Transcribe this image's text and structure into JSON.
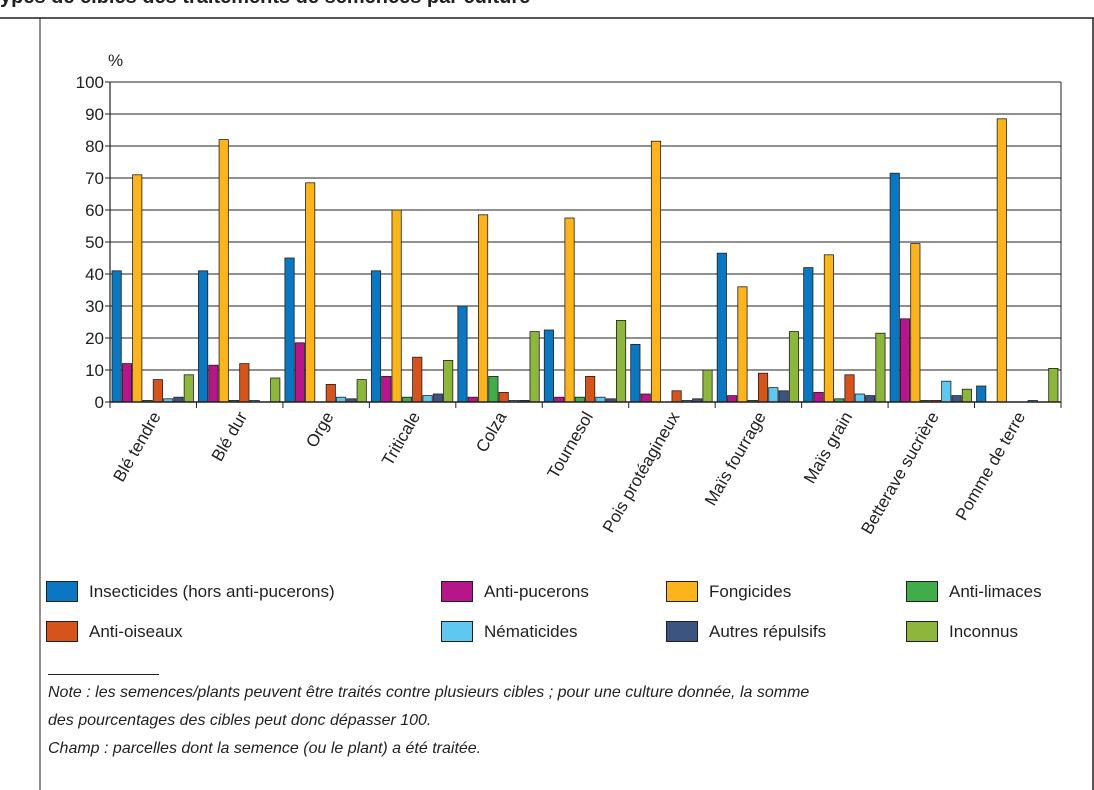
{
  "title": "ypes de cibles des traitements de semences par culture",
  "colors": {
    "insecticides": "#0a77c0",
    "anti_pucerons": "#b5178b",
    "fongicides": "#fbb41c",
    "anti_limaces": "#3fad49",
    "anti_oiseaux": "#d4541c",
    "nematicides": "#5fc8f0",
    "autres_repulsifs": "#3b5580",
    "inconnus": "#8cb63c"
  },
  "legend": [
    {
      "label": "Insecticides (hors anti-pucerons)",
      "color": "#0a77c0"
    },
    {
      "label": "Anti-pucerons",
      "color": "#b5178b"
    },
    {
      "label": "Fongicides",
      "color": "#fbb41c"
    },
    {
      "label": "Anti-limaces",
      "color": "#3fad49"
    },
    {
      "label": "Anti-oiseaux",
      "color": "#d4541c"
    },
    {
      "label": "Nématicides",
      "color": "#5fc8f0"
    },
    {
      "label": "Autres répulsifs",
      "color": "#3b5580"
    },
    {
      "label": "Inconnus",
      "color": "#8cb63c"
    }
  ],
  "notes": {
    "line1": "Note : les semences/plants peuvent être traités contre plusieurs cibles ; pour une culture donnée, la somme",
    "line2": "des pourcentages des cibles peut donc dépasser 100.",
    "line3": "Champ : parcelles dont la semence (ou le plant) a été traitée."
  },
  "chart_data": {
    "type": "bar",
    "ylabel": "%",
    "ylim": [
      0,
      100
    ],
    "yticks": [
      0,
      10,
      20,
      30,
      40,
      50,
      60,
      70,
      80,
      90,
      100
    ],
    "grid": true,
    "legend_position": "bottom",
    "categories": [
      "Blé tendre",
      "Blé dur",
      "Orge",
      "Triticale",
      "Colza",
      "Tournesol",
      "Pois protéagineux",
      "Maïs fourrage",
      "Maïs grain",
      "Betterave sucrière",
      "Pomme de terre"
    ],
    "series": [
      {
        "name": "Insecticides (hors anti-pucerons)",
        "color": "#0a77c0",
        "values": [
          41,
          41,
          45,
          41,
          30,
          22.5,
          18,
          46.5,
          42,
          71.5,
          5
        ]
      },
      {
        "name": "Anti-pucerons",
        "color": "#b5178b",
        "values": [
          12,
          11.5,
          18.5,
          8,
          1.5,
          1.5,
          2.5,
          2,
          3,
          26,
          0
        ]
      },
      {
        "name": "Fongicides",
        "color": "#fbb41c",
        "values": [
          71,
          82,
          68.5,
          60,
          58.5,
          57.5,
          81.5,
          36,
          46,
          49.5,
          88.5
        ]
      },
      {
        "name": "Anti-limaces",
        "color": "#3fad49",
        "values": [
          0.5,
          0.5,
          0,
          1.5,
          8,
          1.5,
          0,
          0.5,
          1,
          0.5,
          0
        ]
      },
      {
        "name": "Anti-oiseaux",
        "color": "#d4541c",
        "values": [
          7,
          12,
          5.5,
          14,
          3,
          8,
          3.5,
          9,
          8.5,
          0.5,
          0
        ]
      },
      {
        "name": "Nématicides",
        "color": "#5fc8f0",
        "values": [
          1,
          0.5,
          1.5,
          2,
          0.5,
          1.5,
          0.5,
          4.5,
          2.5,
          6.5,
          0.5
        ]
      },
      {
        "name": "Autres répulsifs",
        "color": "#3b5580",
        "values": [
          1.5,
          0,
          1,
          2.5,
          0.5,
          1,
          1,
          3.5,
          2,
          2,
          0
        ]
      },
      {
        "name": "Inconnus",
        "color": "#8cb63c",
        "values": [
          8.5,
          7.5,
          7,
          13,
          22,
          25.5,
          10,
          22,
          21.5,
          4,
          10.5
        ]
      }
    ]
  }
}
